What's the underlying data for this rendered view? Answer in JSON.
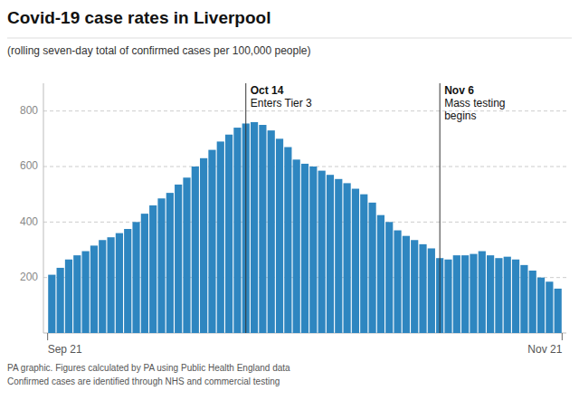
{
  "chart_data": {
    "type": "bar",
    "title": "Covid-19 case rates in Liverpool",
    "subtitle": "(rolling seven-day total of confirmed cases per 100,000 people)",
    "color": "#2e86c0",
    "categories": [
      "Sep 21",
      null,
      null,
      null,
      null,
      null,
      null,
      null,
      null,
      null,
      null,
      null,
      null,
      null,
      null,
      null,
      null,
      null,
      null,
      null,
      null,
      null,
      null,
      null,
      null,
      null,
      null,
      null,
      null,
      null,
      null,
      null,
      null,
      null,
      null,
      null,
      null,
      null,
      null,
      null,
      null,
      null,
      null,
      null,
      null,
      null,
      null,
      null,
      null,
      null,
      null,
      null,
      null,
      null,
      null,
      null,
      null,
      null,
      null,
      null,
      "Nov 21"
    ],
    "values": [
      210,
      235,
      265,
      280,
      295,
      315,
      335,
      345,
      360,
      375,
      400,
      430,
      460,
      485,
      505,
      535,
      560,
      600,
      630,
      660,
      690,
      715,
      740,
      755,
      760,
      750,
      730,
      700,
      670,
      625,
      610,
      600,
      585,
      570,
      555,
      540,
      520,
      500,
      470,
      425,
      400,
      370,
      350,
      335,
      320,
      305,
      270,
      265,
      280,
      280,
      285,
      295,
      280,
      270,
      275,
      265,
      245,
      225,
      200,
      185,
      160
    ],
    "ylim": [
      0,
      900
    ],
    "yticks": [
      200,
      400,
      600,
      800
    ],
    "grid": true,
    "annotations": [
      {
        "index": 23,
        "title": "Oct 14",
        "text": "Enters Tier 3"
      },
      {
        "index": 46,
        "title": "Nov 6",
        "text": "Mass testing\nbegins"
      }
    ],
    "footnotes": [
      "PA graphic. Figures calculated by PA using Public Health England data",
      "Confirmed cases are identified through NHS and commercial testing"
    ]
  }
}
